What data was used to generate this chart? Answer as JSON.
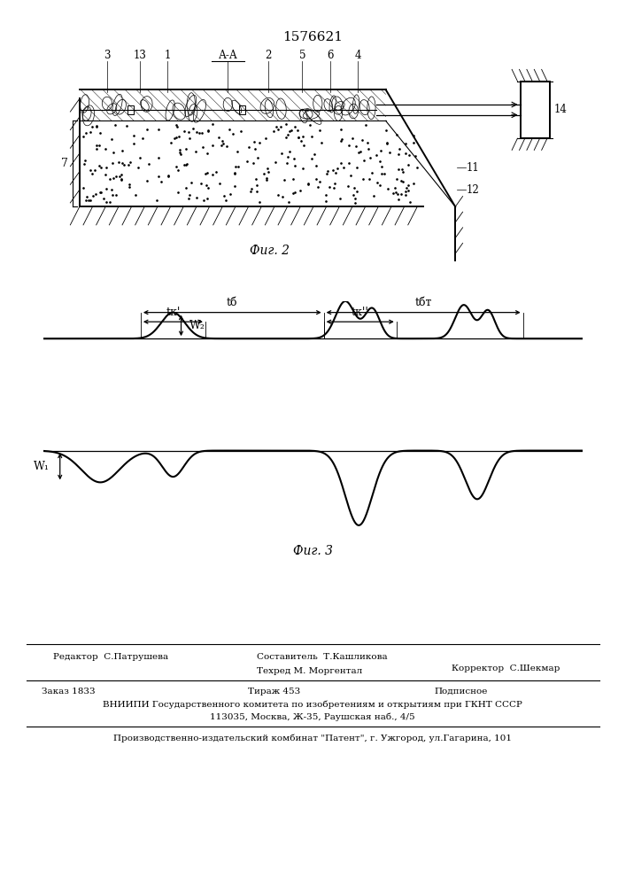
{
  "patent_number": "1576621",
  "fig2_caption": "Фиг. 2",
  "fig3_caption": "Фиг. 3",
  "bottom_rows": {
    "editor": "Редактор  С.Патрушева",
    "composer": "Составитель  Т.Кашликова",
    "corrector": "Корректор  С.Шекмар",
    "techred": "Техред М. Моргентал",
    "order": "Заказ 1833",
    "tirazh": "Тираж 453",
    "podpisnoe": "Подписное",
    "vniipи": "ВНИИПИ Государственного комитета по изобретениям и открытиям при ГКНТ СССР",
    "address": "113035, Москва, Ж-35, Раушская наб., 4/5",
    "plant": "Производственно-издательский комбинат \"Патент\", г. Ужгород, ул.Гагарина, 101"
  }
}
